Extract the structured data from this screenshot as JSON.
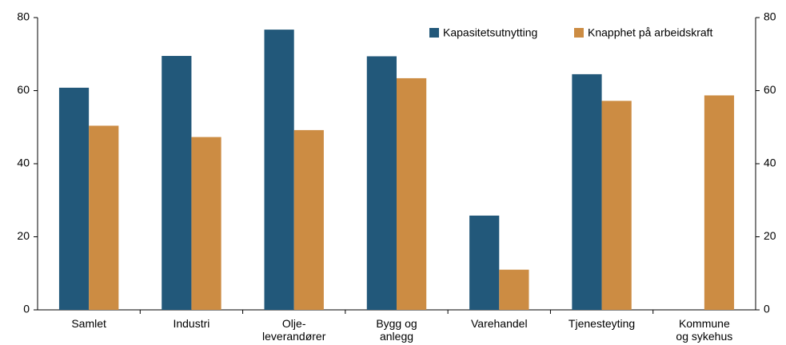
{
  "chart_data": {
    "type": "bar",
    "categories": [
      "Samlet",
      "Industri",
      "Olje-\nleverandører",
      "Bygg og\nanlegg",
      "Varehandel",
      "Tjenesteyting",
      "Kommune\nog sykehus"
    ],
    "series": [
      {
        "name": "Kapasitetsutnytting",
        "color": "#22587a",
        "values": [
          60.8,
          69.5,
          76.7,
          69.4,
          25.8,
          64.5,
          null
        ]
      },
      {
        "name": "Knapphet på arbeidskraft",
        "color": "#cc8c43",
        "values": [
          50.4,
          47.3,
          49.2,
          63.4,
          11.0,
          57.2,
          58.7
        ]
      }
    ],
    "ylim": [
      0,
      80
    ],
    "yticks": [
      0,
      20,
      40,
      60,
      80
    ],
    "y2lim": [
      0,
      80
    ],
    "y2ticks": [
      0,
      20,
      40,
      60,
      80
    ],
    "legend": "top-right"
  }
}
